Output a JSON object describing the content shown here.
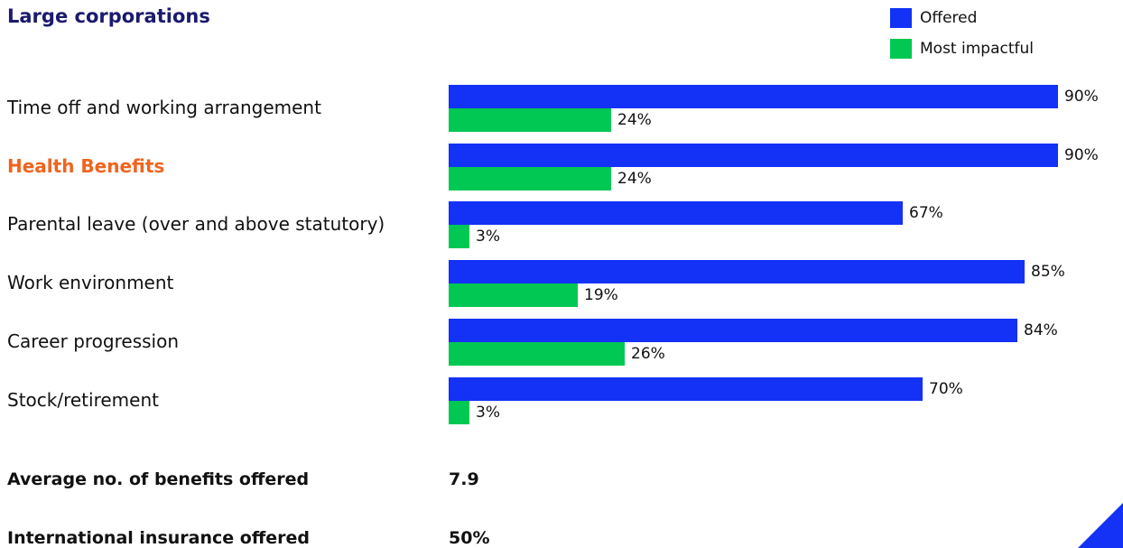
{
  "chart_data": {
    "type": "bar",
    "orientation": "horizontal",
    "title": "Large corporations",
    "categories": [
      "Time off and working arrangement",
      "Health Benefits",
      "Parental leave (over and above statutory)",
      "Work environment",
      "Career progression",
      "Stock/retirement"
    ],
    "highlighted_category": "Health Benefits",
    "series": [
      {
        "name": "Offered",
        "color": "#1432f5",
        "values": [
          90,
          90,
          67,
          85,
          84,
          70
        ],
        "labels": [
          "90%",
          "90%",
          "67%",
          "85%",
          "84%",
          "70%"
        ]
      },
      {
        "name": "Most impactful",
        "color": "#00c853",
        "values": [
          24,
          24,
          3,
          19,
          26,
          3
        ],
        "labels": [
          "24%",
          "24%",
          "3%",
          "19%",
          "26%",
          "3%"
        ]
      }
    ],
    "xlim": [
      0,
      100
    ],
    "value_unit": "%",
    "legend_position": "top-right",
    "grid": false
  },
  "summary": [
    {
      "label": "Average no. of benefits offered",
      "value": "7.9"
    },
    {
      "label": "International insurance offered",
      "value": "50%"
    }
  ],
  "colors": {
    "title": "#1a1a6e",
    "highlight": "#f0641e",
    "corner_accent": "#1432f5"
  }
}
